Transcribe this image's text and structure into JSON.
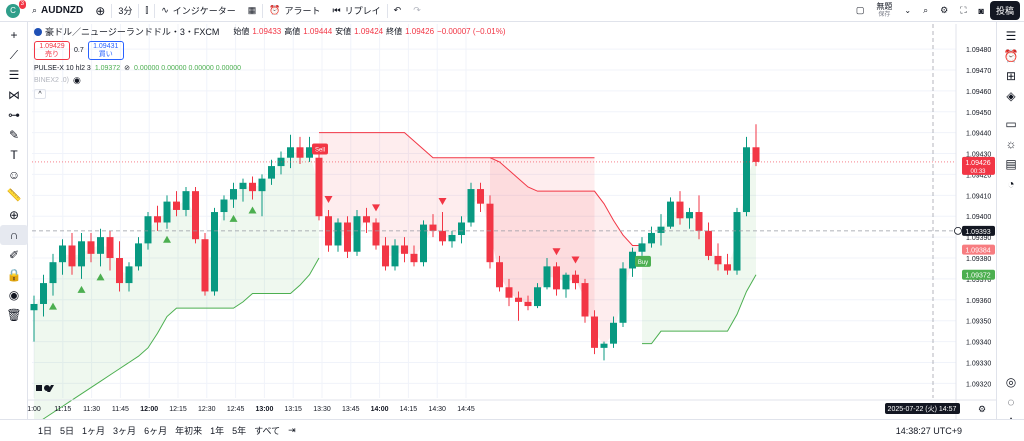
{
  "topbar": {
    "avatar_letter": "C",
    "notification_count": "3",
    "symbol": "AUDNZD",
    "interval": "3分",
    "indicators_label": "インジケーター",
    "alert_label": "アラート",
    "replay_label": "リプレイ",
    "account_label": "無題",
    "account_sub": "保存",
    "post_label": "投稿"
  },
  "legend": {
    "title": "豪ドル／ニュージーランドドル・3・FXCM",
    "o_label": "始値",
    "o": "1.09433",
    "h_label": "高値",
    "h": "1.09444",
    "l_label": "安値",
    "l": "1.09424",
    "c_label": "終値",
    "c": "1.09426",
    "change": "−0.00007 (−0.01%)",
    "sell_price": "1.09429",
    "sell_label": "売り",
    "spread": "0.7",
    "buy_price": "1.09431",
    "buy_label": "買い",
    "ind1_name": "PULSE-X 10 hl2 3",
    "ind1_v1": "1.09372",
    "ind1_v2": "0.00000 0.00000 0.00000 0.00000",
    "ind2_name": "BINEX2 .0)"
  },
  "bottombar": {
    "ranges": [
      "1日",
      "5日",
      "1ヶ月",
      "3ヶ月",
      "6ヶ月",
      "年初来",
      "1年",
      "5年",
      "すべて"
    ],
    "clock": "14:38:27 UTC+9"
  },
  "chart_data": {
    "type": "candlestick",
    "symbol": "AUDNZD",
    "timeframe": "3",
    "ylim": [
      1.09313,
      1.09492
    ],
    "y_ticks": [
      "1.09480",
      "1.09470",
      "1.09460",
      "1.09450",
      "1.09440",
      "1.09430",
      "1.09420",
      "1.09410",
      "1.09400",
      "1.09390",
      "1.09380",
      "1.09370",
      "1.09360",
      "1.09350",
      "1.09340",
      "1.09330",
      "1.09320"
    ],
    "x_ticks": [
      "1:00",
      "11:15",
      "11:30",
      "11:45",
      "12:00",
      "12:15",
      "12:30",
      "12:45",
      "13:00",
      "13:15",
      "13:30",
      "13:45",
      "14:00",
      "14:15",
      "14:30",
      "14:45"
    ],
    "x_tick_bold": [
      "12:00",
      "13:00",
      "14:00"
    ],
    "crosshair_date": "2025-07-22 (火)",
    "crosshair_time": "14:57",
    "price_labels": [
      {
        "value": "1.09426",
        "sub": "00:33",
        "color": "#f23645"
      },
      {
        "value": "1.09393",
        "color": "#131722"
      },
      {
        "value": "1.09384",
        "color": "#f77c80"
      },
      {
        "value": "1.09372",
        "color": "#4caf50"
      }
    ],
    "candles": [
      {
        "o": 1.09355,
        "h": 1.09362,
        "l": 1.0934,
        "c": 1.09358
      },
      {
        "o": 1.09358,
        "h": 1.09372,
        "l": 1.09352,
        "c": 1.09368
      },
      {
        "o": 1.09368,
        "h": 1.09382,
        "l": 1.09362,
        "c": 1.09378
      },
      {
        "o": 1.09378,
        "h": 1.09389,
        "l": 1.09372,
        "c": 1.09386
      },
      {
        "o": 1.09386,
        "h": 1.09392,
        "l": 1.09372,
        "c": 1.09376
      },
      {
        "o": 1.09376,
        "h": 1.09392,
        "l": 1.0937,
        "c": 1.09388
      },
      {
        "o": 1.09388,
        "h": 1.09392,
        "l": 1.09378,
        "c": 1.09382
      },
      {
        "o": 1.09382,
        "h": 1.09394,
        "l": 1.09376,
        "c": 1.0939
      },
      {
        "o": 1.0939,
        "h": 1.09393,
        "l": 1.09374,
        "c": 1.0938
      },
      {
        "o": 1.0938,
        "h": 1.09388,
        "l": 1.09364,
        "c": 1.09368
      },
      {
        "o": 1.09368,
        "h": 1.09378,
        "l": 1.09364,
        "c": 1.09376
      },
      {
        "o": 1.09376,
        "h": 1.0939,
        "l": 1.09374,
        "c": 1.09387
      },
      {
        "o": 1.09387,
        "h": 1.09402,
        "l": 1.09384,
        "c": 1.094
      },
      {
        "o": 1.094,
        "h": 1.09405,
        "l": 1.09393,
        "c": 1.09397
      },
      {
        "o": 1.09397,
        "h": 1.0941,
        "l": 1.09394,
        "c": 1.09407
      },
      {
        "o": 1.09407,
        "h": 1.09412,
        "l": 1.094,
        "c": 1.09403
      },
      {
        "o": 1.09403,
        "h": 1.09414,
        "l": 1.094,
        "c": 1.09412
      },
      {
        "o": 1.09412,
        "h": 1.09414,
        "l": 1.09387,
        "c": 1.09389
      },
      {
        "o": 1.09389,
        "h": 1.09392,
        "l": 1.09362,
        "c": 1.09364
      },
      {
        "o": 1.09364,
        "h": 1.09404,
        "l": 1.09362,
        "c": 1.09402
      },
      {
        "o": 1.09402,
        "h": 1.0941,
        "l": 1.09398,
        "c": 1.09408
      },
      {
        "o": 1.09408,
        "h": 1.09416,
        "l": 1.09404,
        "c": 1.09413
      },
      {
        "o": 1.09413,
        "h": 1.09418,
        "l": 1.09407,
        "c": 1.09416
      },
      {
        "o": 1.09416,
        "h": 1.09419,
        "l": 1.09408,
        "c": 1.09412
      },
      {
        "o": 1.09412,
        "h": 1.0942,
        "l": 1.094,
        "c": 1.09418
      },
      {
        "o": 1.09418,
        "h": 1.09427,
        "l": 1.09415,
        "c": 1.09424
      },
      {
        "o": 1.09424,
        "h": 1.09431,
        "l": 1.0942,
        "c": 1.09428
      },
      {
        "o": 1.09428,
        "h": 1.09439,
        "l": 1.09423,
        "c": 1.09433
      },
      {
        "o": 1.09433,
        "h": 1.09438,
        "l": 1.09425,
        "c": 1.09428
      },
      {
        "o": 1.09428,
        "h": 1.09438,
        "l": 1.09426,
        "c": 1.09433
      },
      {
        "o": 1.09428,
        "h": 1.09431,
        "l": 1.09398,
        "c": 1.094
      },
      {
        "o": 1.094,
        "h": 1.09403,
        "l": 1.09383,
        "c": 1.09386
      },
      {
        "o": 1.09386,
        "h": 1.09399,
        "l": 1.09383,
        "c": 1.09397
      },
      {
        "o": 1.09397,
        "h": 1.094,
        "l": 1.0938,
        "c": 1.09383
      },
      {
        "o": 1.09383,
        "h": 1.09403,
        "l": 1.09381,
        "c": 1.094
      },
      {
        "o": 1.094,
        "h": 1.09404,
        "l": 1.09392,
        "c": 1.09397
      },
      {
        "o": 1.09397,
        "h": 1.09399,
        "l": 1.09384,
        "c": 1.09386
      },
      {
        "o": 1.09386,
        "h": 1.0939,
        "l": 1.09374,
        "c": 1.09376
      },
      {
        "o": 1.09376,
        "h": 1.09389,
        "l": 1.09374,
        "c": 1.09386
      },
      {
        "o": 1.09386,
        "h": 1.0939,
        "l": 1.09378,
        "c": 1.09382
      },
      {
        "o": 1.09382,
        "h": 1.09386,
        "l": 1.09376,
        "c": 1.09378
      },
      {
        "o": 1.09378,
        "h": 1.09398,
        "l": 1.09376,
        "c": 1.09396
      },
      {
        "o": 1.09396,
        "h": 1.09401,
        "l": 1.0939,
        "c": 1.09393
      },
      {
        "o": 1.09393,
        "h": 1.09402,
        "l": 1.09386,
        "c": 1.09388
      },
      {
        "o": 1.09388,
        "h": 1.09393,
        "l": 1.09385,
        "c": 1.09391
      },
      {
        "o": 1.09391,
        "h": 1.094,
        "l": 1.09387,
        "c": 1.09397
      },
      {
        "o": 1.09397,
        "h": 1.09416,
        "l": 1.09395,
        "c": 1.09413
      },
      {
        "o": 1.09413,
        "h": 1.09416,
        "l": 1.09402,
        "c": 1.09406
      },
      {
        "o": 1.09406,
        "h": 1.0941,
        "l": 1.09375,
        "c": 1.09378
      },
      {
        "o": 1.09378,
        "h": 1.09381,
        "l": 1.09364,
        "c": 1.09366
      },
      {
        "o": 1.09366,
        "h": 1.0937,
        "l": 1.09357,
        "c": 1.09361
      },
      {
        "o": 1.09361,
        "h": 1.09364,
        "l": 1.0935,
        "c": 1.09359
      },
      {
        "o": 1.09359,
        "h": 1.09362,
        "l": 1.09355,
        "c": 1.09357
      },
      {
        "o": 1.09357,
        "h": 1.09368,
        "l": 1.09356,
        "c": 1.09366
      },
      {
        "o": 1.09366,
        "h": 1.0938,
        "l": 1.09365,
        "c": 1.09376
      },
      {
        "o": 1.09376,
        "h": 1.09378,
        "l": 1.09362,
        "c": 1.09365
      },
      {
        "o": 1.09365,
        "h": 1.09373,
        "l": 1.09361,
        "c": 1.09372
      },
      {
        "o": 1.09372,
        "h": 1.09374,
        "l": 1.09365,
        "c": 1.09368
      },
      {
        "o": 1.09368,
        "h": 1.0937,
        "l": 1.09349,
        "c": 1.09352
      },
      {
        "o": 1.09352,
        "h": 1.09355,
        "l": 1.09334,
        "c": 1.09337
      },
      {
        "o": 1.09337,
        "h": 1.0934,
        "l": 1.09331,
        "c": 1.09339
      },
      {
        "o": 1.09339,
        "h": 1.09352,
        "l": 1.09337,
        "c": 1.09349
      },
      {
        "o": 1.09349,
        "h": 1.09378,
        "l": 1.09347,
        "c": 1.09375
      },
      {
        "o": 1.09375,
        "h": 1.09385,
        "l": 1.09371,
        "c": 1.09383
      },
      {
        "o": 1.09383,
        "h": 1.0939,
        "l": 1.09381,
        "c": 1.09387
      },
      {
        "o": 1.09387,
        "h": 1.09395,
        "l": 1.09385,
        "c": 1.09392
      },
      {
        "o": 1.09392,
        "h": 1.09401,
        "l": 1.09386,
        "c": 1.09395
      },
      {
        "o": 1.09395,
        "h": 1.09409,
        "l": 1.09394,
        "c": 1.09407
      },
      {
        "o": 1.09407,
        "h": 1.09412,
        "l": 1.09396,
        "c": 1.09399
      },
      {
        "o": 1.09399,
        "h": 1.09404,
        "l": 1.09394,
        "c": 1.09402
      },
      {
        "o": 1.09402,
        "h": 1.0941,
        "l": 1.09389,
        "c": 1.09393
      },
      {
        "o": 1.09393,
        "h": 1.09397,
        "l": 1.09379,
        "c": 1.09381
      },
      {
        "o": 1.09381,
        "h": 1.09387,
        "l": 1.09374,
        "c": 1.09377
      },
      {
        "o": 1.09377,
        "h": 1.09382,
        "l": 1.09372,
        "c": 1.09374
      },
      {
        "o": 1.09374,
        "h": 1.09404,
        "l": 1.09372,
        "c": 1.09402
      },
      {
        "o": 1.09402,
        "h": 1.09438,
        "l": 1.094,
        "c": 1.09433
      },
      {
        "o": 1.09433,
        "h": 1.09444,
        "l": 1.09424,
        "c": 1.09426
      }
    ],
    "series": [
      {
        "name": "PULSE-X",
        "segments": [
          {
            "side": "support",
            "from": 0,
            "to": 30,
            "values": [
              1.093,
              1.09303,
              1.09306,
              1.09309,
              1.09312,
              1.09315,
              1.09318,
              1.09321,
              1.09324,
              1.09327,
              1.0933,
              1.09333,
              1.09337,
              1.09344,
              1.09352,
              1.09356,
              1.09356,
              1.09356,
              1.09356,
              1.09356,
              1.09356,
              1.09356,
              1.09359,
              1.09363,
              1.09363,
              1.09363,
              1.09363,
              1.09363,
              1.09367,
              1.09372,
              1.0938
            ]
          },
          {
            "side": "resistance",
            "from": 30,
            "to": 59,
            "values": [
              1.0944,
              1.0944,
              1.0944,
              1.0944,
              1.0944,
              1.0944,
              1.0944,
              1.0944,
              1.0944,
              1.0944,
              1.09436,
              1.09432,
              1.09428,
              1.09428,
              1.09428,
              1.09428,
              1.09428,
              1.09428,
              1.09428,
              1.09428,
              1.09428,
              1.09428,
              1.09428,
              1.09428,
              1.09428,
              1.09428,
              1.09428,
              1.09428,
              1.09428,
              1.09428
            ]
          },
          {
            "side": "resistance",
            "from": 48,
            "to": 64,
            "values": [
              1.09428,
              1.09426,
              1.09422,
              1.09418,
              1.09414,
              1.09412,
              1.09412,
              1.09412,
              1.09412,
              1.09412,
              1.09412,
              1.09412,
              1.09406,
              1.09398,
              1.09391,
              1.09386,
              1.09386
            ]
          },
          {
            "side": "support",
            "from": 64,
            "to": 76,
            "values": [
              1.09339,
              1.09339,
              1.09345,
              1.09345,
              1.09345,
              1.09345,
              1.09345,
              1.09345,
              1.09345,
              1.09345,
              1.09353,
              1.09364,
              1.09372
            ]
          }
        ]
      }
    ],
    "signals": [
      {
        "type": "buy",
        "index": 2
      },
      {
        "type": "buy",
        "index": 5
      },
      {
        "type": "buy",
        "index": 7
      },
      {
        "type": "buy",
        "index": 14
      },
      {
        "type": "buy",
        "index": 21
      },
      {
        "type": "buy",
        "index": 23
      },
      {
        "type": "sell",
        "index": 31
      },
      {
        "type": "sell",
        "index": 36
      },
      {
        "type": "sell",
        "index": 43
      },
      {
        "type": "sell",
        "index": 55
      },
      {
        "type": "sell",
        "index": 57
      }
    ],
    "labels": [
      {
        "text": "Sell",
        "index": 30,
        "color": "#f23645"
      },
      {
        "text": "Buy",
        "index": 64,
        "color": "#4caf50"
      }
    ]
  }
}
